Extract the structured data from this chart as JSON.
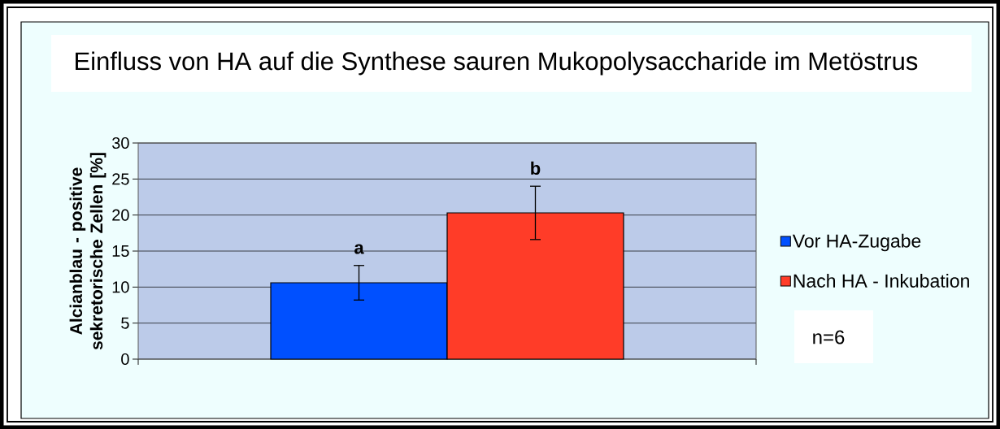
{
  "chart_data": {
    "type": "bar",
    "title": "Einfluss von HA auf die Synthese sauren Mukopolysaccharide im Metöstrus",
    "ylabel": "Alcianblau - positive sekretorische Zellen [%]",
    "categories": [
      null
    ],
    "series": [
      {
        "name": "Vor HA-Zugabe",
        "color": "#0050ff",
        "values": [
          10.6
        ],
        "errors": [
          2.4
        ]
      },
      {
        "name": "Nach HA - Inkubation",
        "color": "#ff3c28",
        "values": [
          20.3
        ],
        "errors": [
          3.7
        ]
      }
    ],
    "ylim": [
      0,
      30
    ],
    "yticks": [
      0,
      5,
      10,
      15,
      20,
      25,
      30
    ],
    "grid": "y",
    "legend": "right",
    "tick_labels": "y",
    "annotations": [
      "a",
      "b",
      "n=6"
    ]
  }
}
